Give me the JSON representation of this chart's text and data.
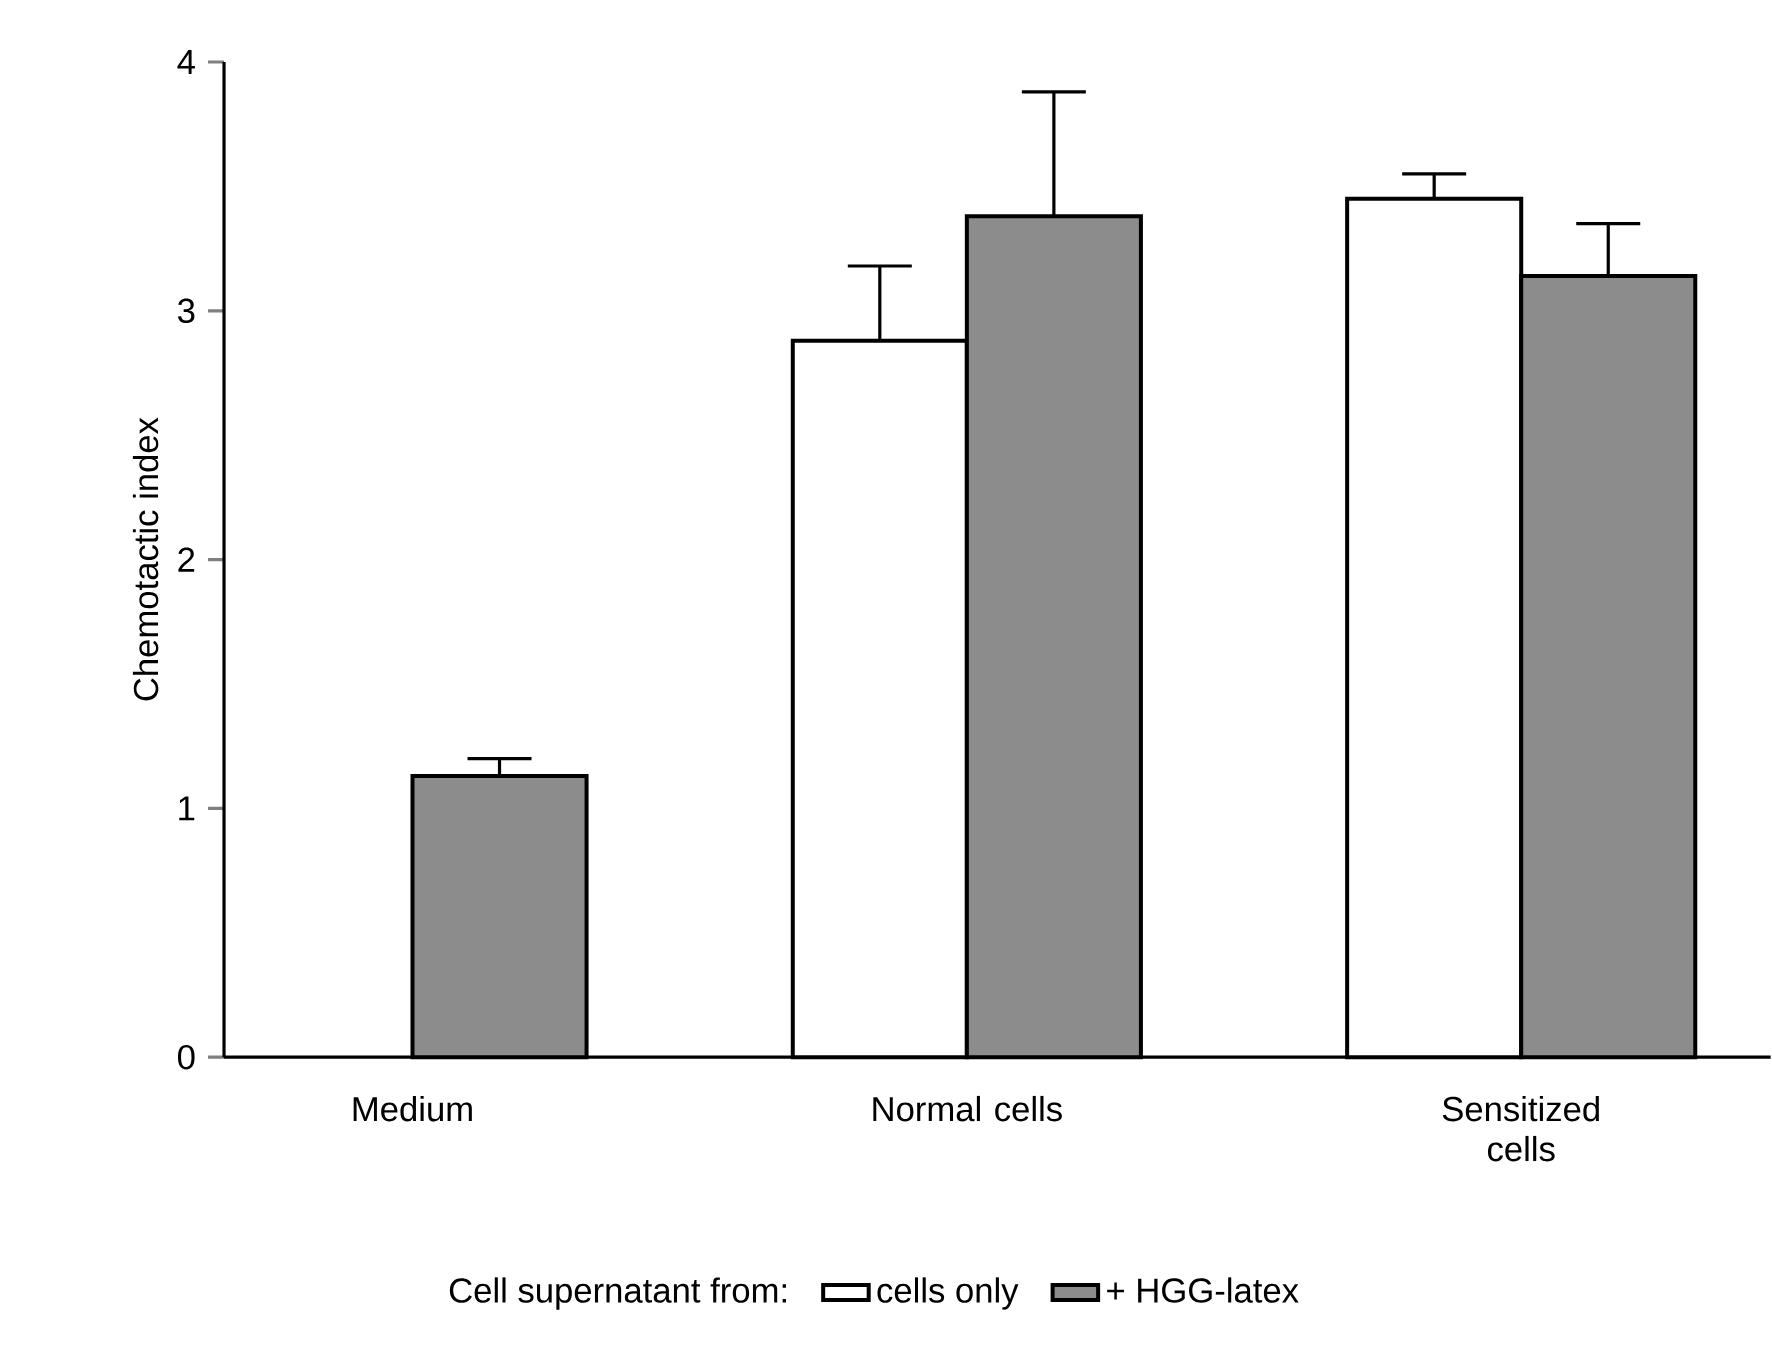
{
  "chart_data": {
    "type": "bar",
    "ylabel": "Chemotactic index",
    "legend_title": "Cell supernatant from:",
    "categories": [
      "Medium",
      "Normal cells",
      "Sensitized cells"
    ],
    "series": [
      {
        "name": "cells only",
        "color": "#ffffff",
        "values": [
          null,
          2.88,
          3.45
        ],
        "errors": [
          null,
          [
            2.88,
            3.18
          ],
          [
            3.45,
            3.55
          ]
        ]
      },
      {
        "name": "+ HGG-latex",
        "color": "#8c8c8c",
        "values": [
          1.13,
          3.38,
          3.14
        ],
        "errors": [
          [
            1.13,
            1.2
          ],
          [
            3.38,
            3.88
          ],
          [
            3.14,
            3.35
          ]
        ]
      }
    ],
    "ylim": [
      0,
      4
    ],
    "yticks": [
      0,
      1,
      2,
      3,
      4
    ],
    "grid": false,
    "legend": "bottom"
  }
}
